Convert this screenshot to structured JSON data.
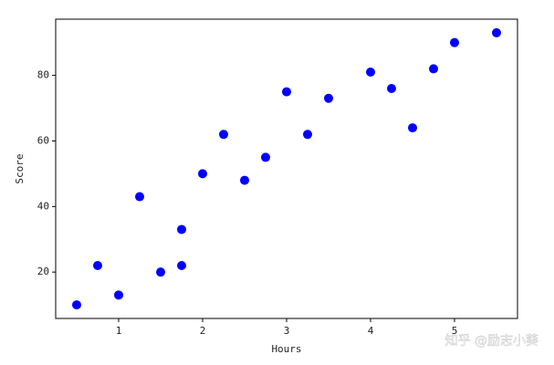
{
  "chart_data": {
    "type": "scatter",
    "xlabel": "Hours",
    "ylabel": "Score",
    "x": [
      0.5,
      0.75,
      1,
      1.25,
      1.5,
      1.75,
      1.75,
      2,
      2.25,
      2.5,
      2.75,
      3,
      3.25,
      3.5,
      4,
      4.25,
      4.5,
      4.75,
      5,
      5.5
    ],
    "series": [
      {
        "color": "#0000ff",
        "values": [
          10,
          22,
          13,
          43,
          20,
          22,
          33,
          50,
          62,
          48,
          55,
          75,
          62,
          73,
          81,
          76,
          64,
          82,
          90,
          93
        ]
      }
    ],
    "xlim": [
      0.25,
      5.75
    ],
    "ylim": [
      5.85,
      97.15
    ],
    "xticks": [
      1,
      2,
      3,
      4,
      5
    ],
    "yticks": [
      20,
      40,
      60,
      80
    ]
  },
  "watermark": "知乎 @励志小葵"
}
